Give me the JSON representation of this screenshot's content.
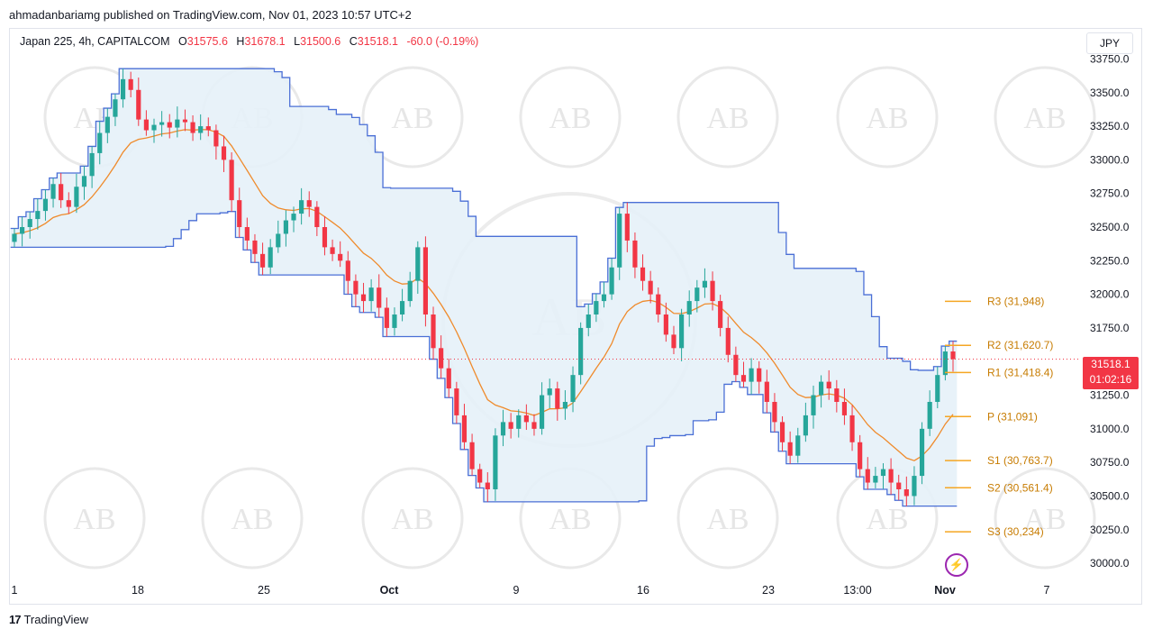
{
  "header": {
    "publish_line": "ahmadanbariamg published on TradingView.com, Nov 01, 2023 10:57 UTC+2"
  },
  "legend": {
    "symbol": "Japan 225, 4h, CAPITALCOM",
    "open_label": "O",
    "open": "31575.6",
    "high_label": "H",
    "high": "31678.1",
    "low_label": "L",
    "low": "31500.6",
    "close_label": "C",
    "close": "31518.1",
    "change": "-60.0 (-0.19%)"
  },
  "currency": "JPY",
  "price_tag": {
    "price": "31518.1",
    "countdown": "01:02:16"
  },
  "footer": {
    "brand": "TradingView",
    "logo_text": "17"
  },
  "watermark": {
    "text": "AB"
  },
  "colors": {
    "up": "#26a69a",
    "down": "#f23645",
    "channel": "#4a6fd6",
    "channel_fill": "#e6f1f8",
    "midline": "#ef8b2c",
    "pivot": "#f5a623"
  },
  "chart_data": {
    "type": "candlestick",
    "ylim": [
      29900,
      33800
    ],
    "yticks": [
      "33750.0",
      "33500.0",
      "33250.0",
      "33000.0",
      "32750.0",
      "32500.0",
      "32250.0",
      "32000.0",
      "31750.0",
      "31500.0",
      "31250.0",
      "31000.0",
      "30750.0",
      "30500.0",
      "30250.0",
      "30000.0"
    ],
    "xticks": [
      "1",
      "18",
      "25",
      "Oct",
      "9",
      "16",
      "23",
      "13:00",
      "Nov",
      "7"
    ],
    "pivots": [
      {
        "label": "R3 (31,948)",
        "value": 31948
      },
      {
        "label": "R2 (31,620.7)",
        "value": 31620.7
      },
      {
        "label": "R1 (31,418.4)",
        "value": 31418.4
      },
      {
        "label": "P (31,091)",
        "value": 31091
      },
      {
        "label": "S1 (30,763.7)",
        "value": 30763.7
      },
      {
        "label": "S2 (30,561.4)",
        "value": 30561.4
      },
      {
        "label": "S3 (30,234)",
        "value": 30234
      }
    ],
    "last_price": 31518.1,
    "closes": [
      32450,
      32500,
      32560,
      32620,
      32710,
      32820,
      32700,
      32650,
      32800,
      32880,
      33050,
      33200,
      33320,
      33450,
      33600,
      33520,
      33300,
      33220,
      33260,
      33280,
      33240,
      33300,
      33280,
      33200,
      33250,
      33220,
      33100,
      33000,
      32700,
      32500,
      32400,
      32300,
      32200,
      32350,
      32450,
      32550,
      32600,
      32700,
      32650,
      32500,
      32350,
      32300,
      32250,
      32100,
      32000,
      31950,
      32050,
      31900,
      31750,
      31850,
      31950,
      32100,
      32350,
      31850,
      31600,
      31450,
      31300,
      31100,
      30900,
      30700,
      30600,
      30550,
      30950,
      31050,
      31000,
      31100,
      31050,
      31000,
      31250,
      31300,
      31150,
      31200,
      31400,
      31750,
      31850,
      31950,
      32000,
      32200,
      32600,
      32400,
      32200,
      32100,
      32000,
      31850,
      31700,
      31600,
      31850,
      31950,
      32050,
      32100,
      31950,
      31750,
      31550,
      31400,
      31350,
      31450,
      31350,
      31200,
      31050,
      30900,
      30800,
      30950,
      31100,
      31250,
      31350,
      31300,
      31200,
      31100,
      30900,
      30700,
      30600,
      30650,
      30700,
      30600,
      30550,
      30500,
      30650,
      31000,
      31200,
      31400,
      31575,
      31518
    ]
  }
}
